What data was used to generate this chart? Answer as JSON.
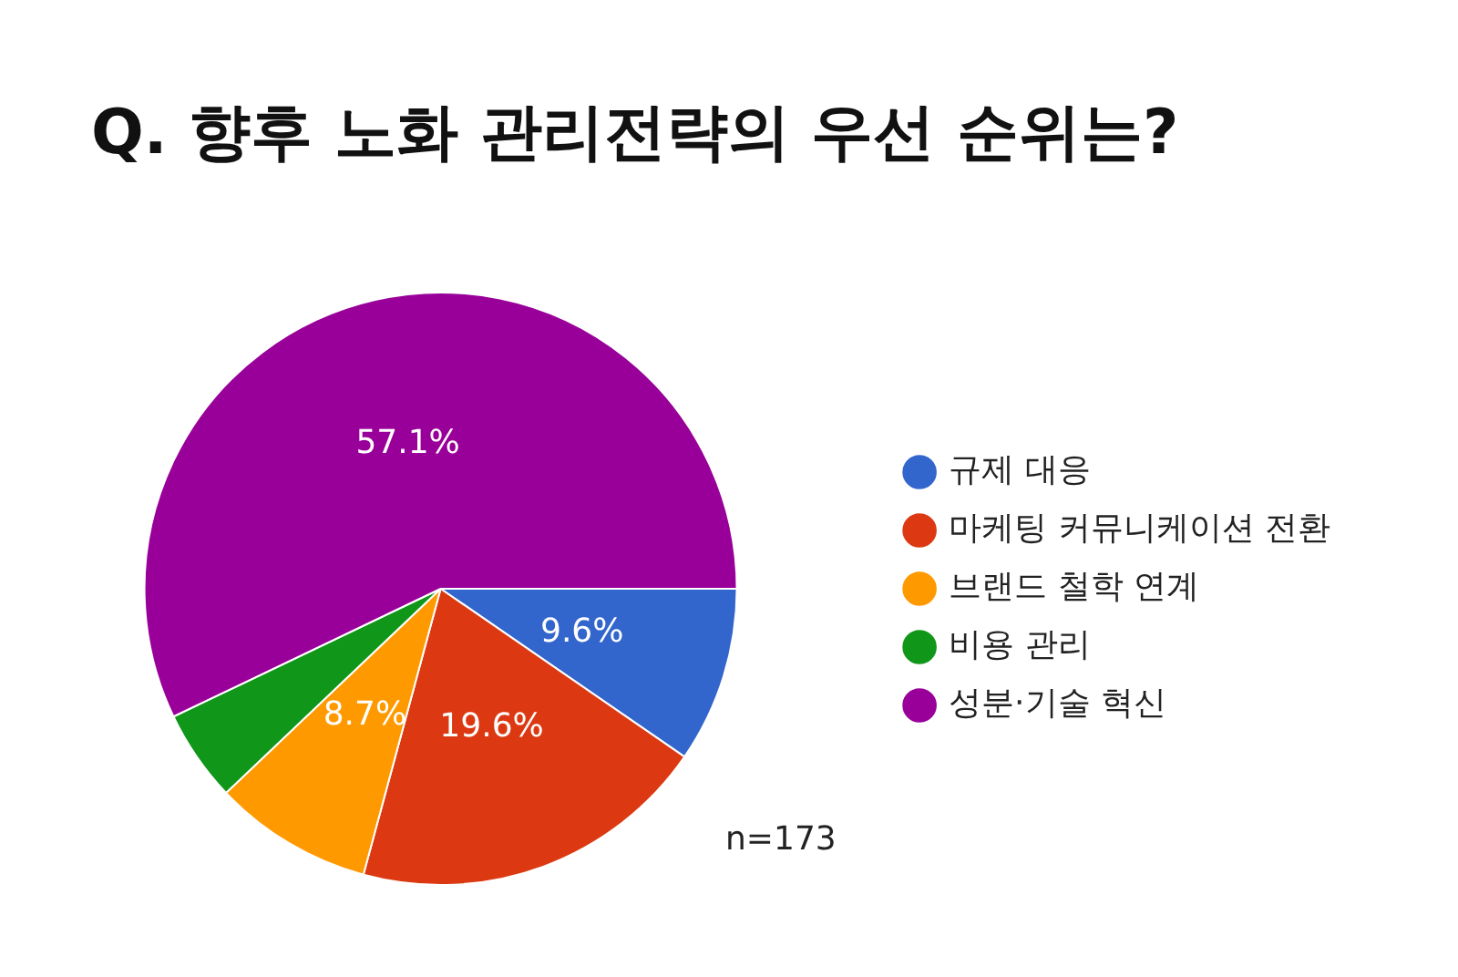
{
  "chart_data": {
    "type": "pie",
    "title": "Q. 향후 노화 관리전략의 우선 순위는?",
    "categories": [
      "규제 대응",
      "마케팅 커뮤니케이션 전환",
      "브랜드 철학 연계",
      "비용 관리",
      "성분·기술 혁신"
    ],
    "values": [
      9.6,
      19.6,
      8.7,
      5.0,
      57.1
    ],
    "colors": [
      "#3366cc",
      "#dc3912",
      "#ff9900",
      "#109618",
      "#990099"
    ],
    "value_labels": [
      "9.6%",
      "19.6%",
      "8.7%",
      null,
      "57.1%"
    ],
    "legend": "right",
    "annotations": [
      "n=173"
    ]
  }
}
